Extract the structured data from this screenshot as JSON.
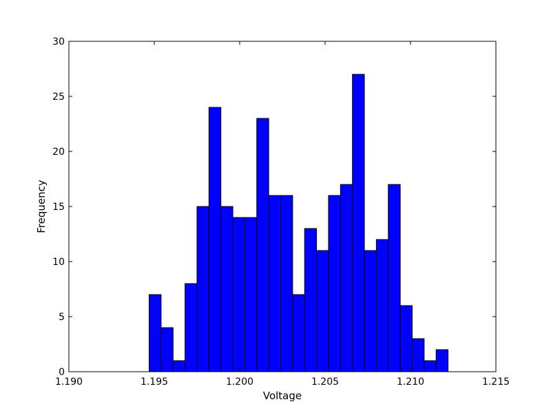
{
  "chart_data": {
    "type": "bar",
    "title": "",
    "xlabel": "Voltage",
    "ylabel": "Frequency",
    "xlim": [
      1.19,
      1.215
    ],
    "ylim": [
      0,
      30
    ],
    "xticks": [
      "1.190",
      "1.195",
      "1.200",
      "1.205",
      "1.210",
      "1.215"
    ],
    "yticks": [
      "0",
      "5",
      "10",
      "15",
      "20",
      "25",
      "30"
    ],
    "bar_color": "#0000ff",
    "edge_color": "#000000",
    "grid": false,
    "legend": "none",
    "bin_start": 1.1947,
    "bin_width": 0.0007,
    "values": [
      7,
      4,
      1,
      8,
      15,
      24,
      15,
      14,
      14,
      23,
      16,
      16,
      7,
      13,
      11,
      16,
      17,
      27,
      11,
      12,
      17,
      6,
      3,
      1,
      2
    ]
  }
}
